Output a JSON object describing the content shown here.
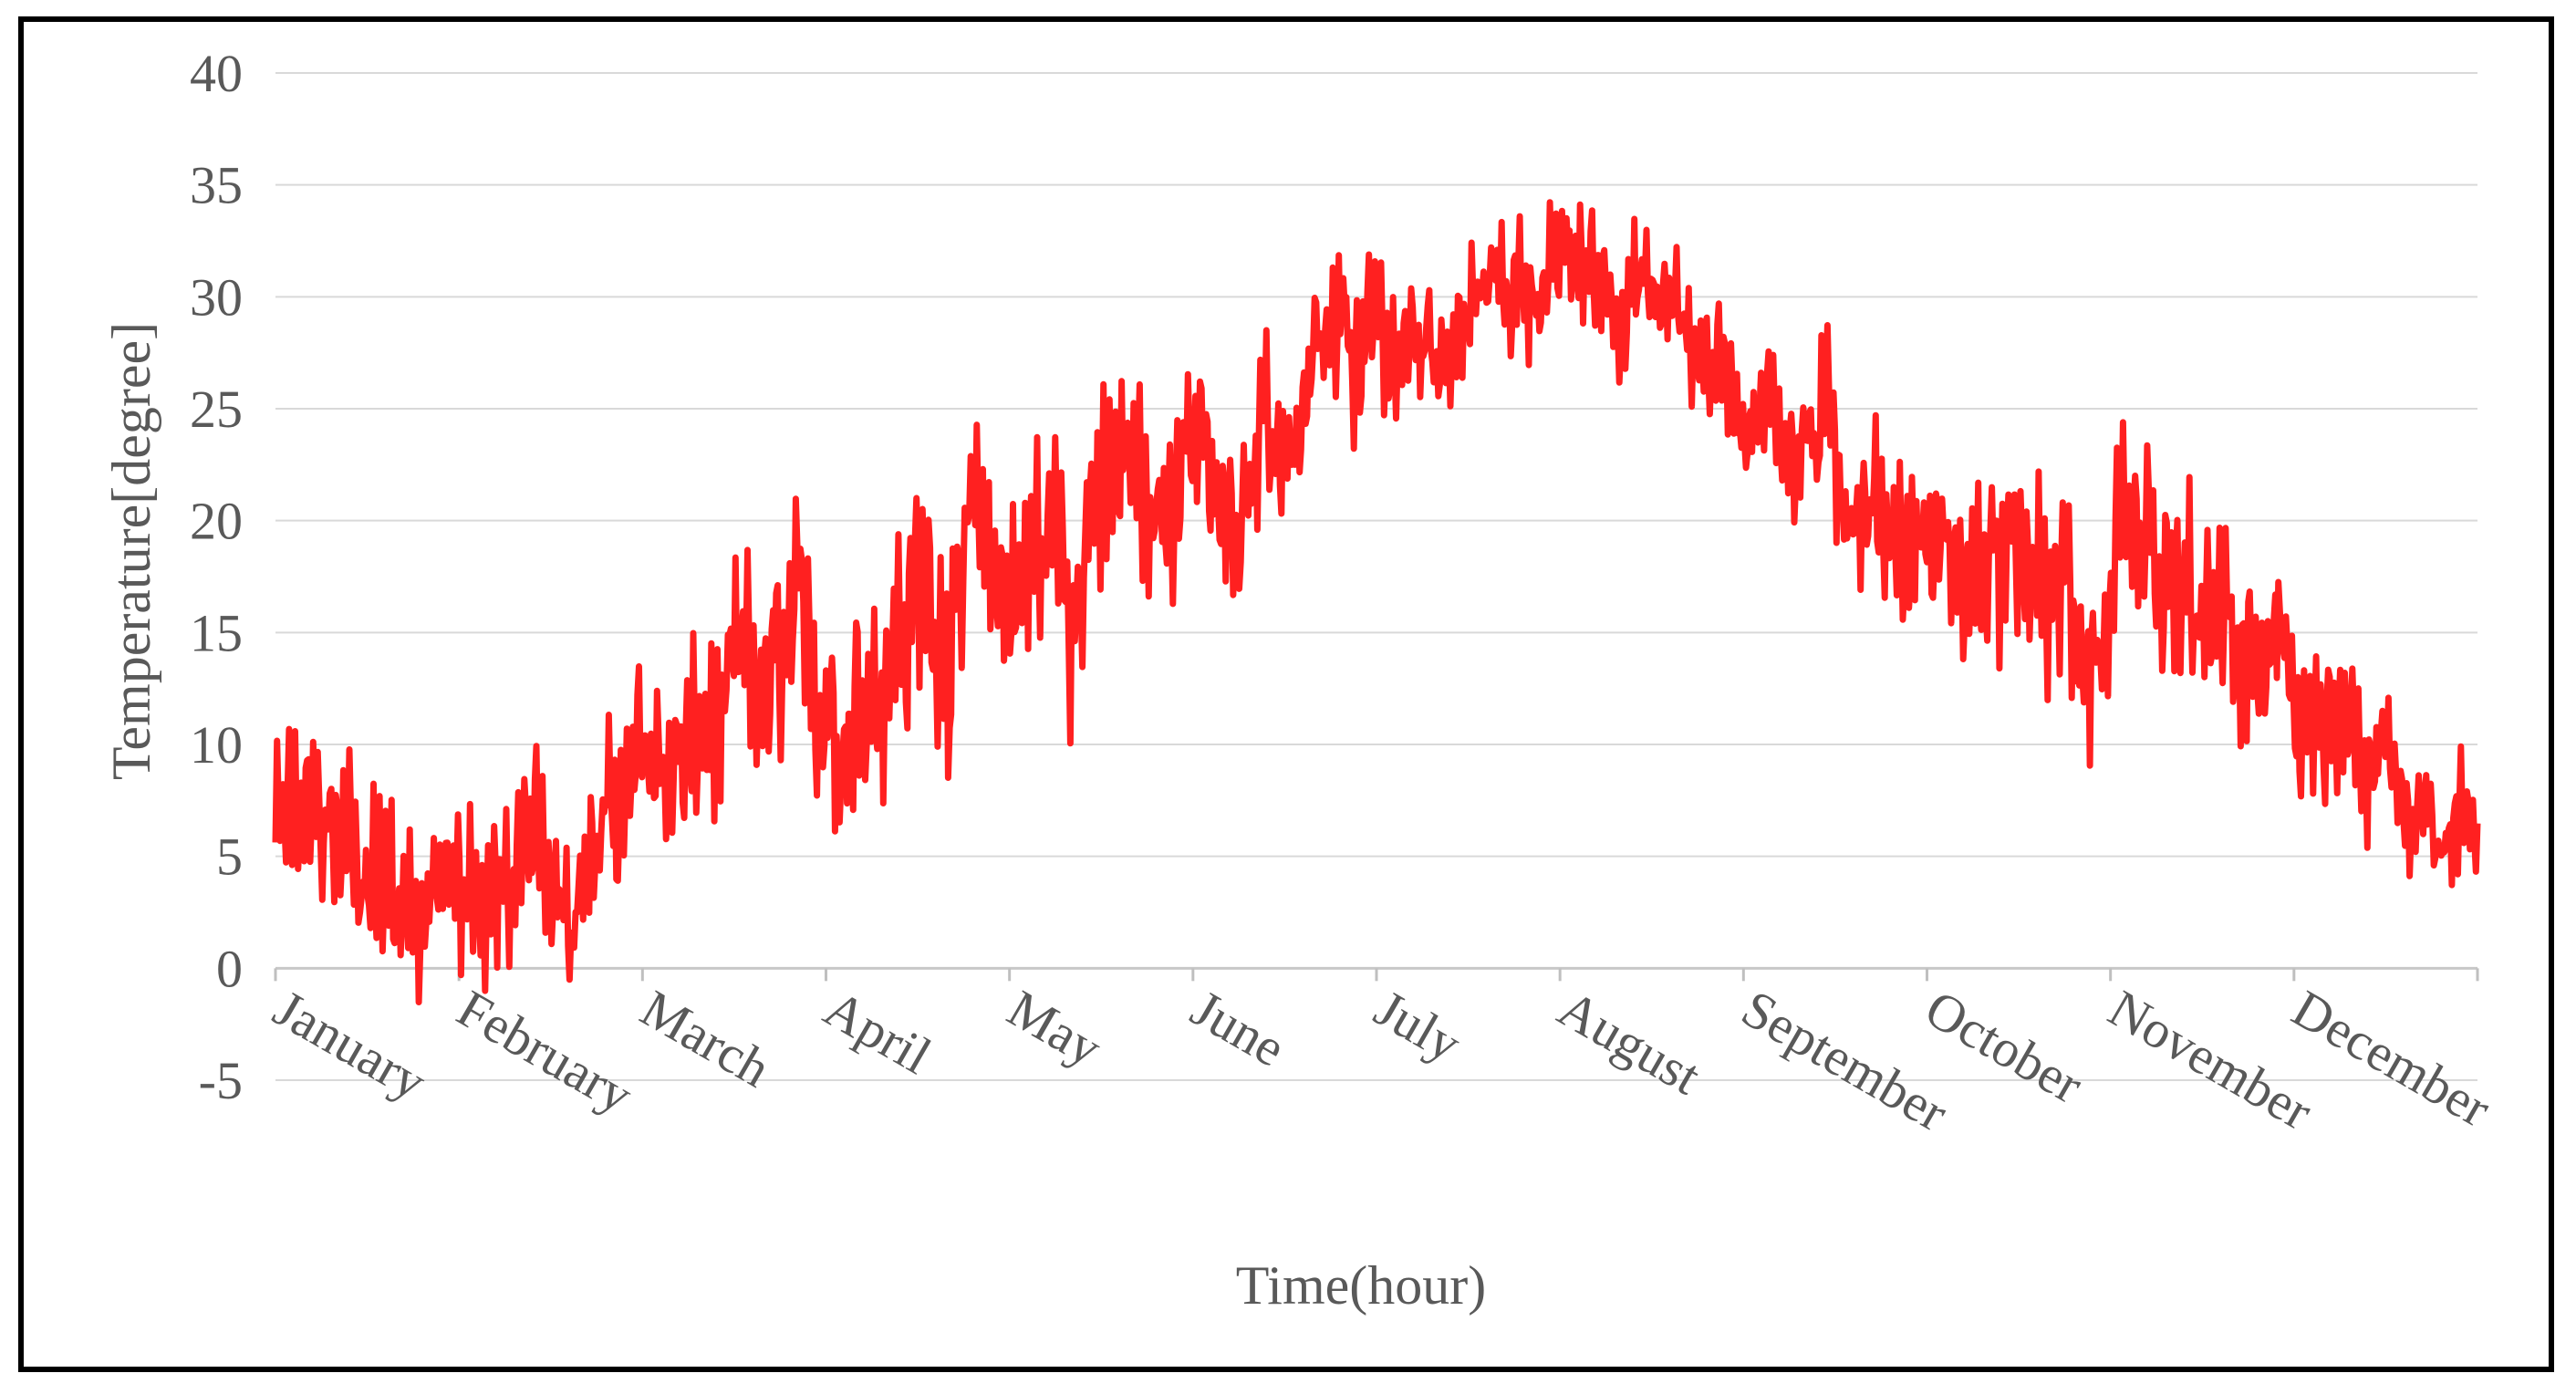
{
  "chart_data": {
    "type": "line",
    "title": "",
    "xlabel": "Time(hour)",
    "ylabel": "Temperature[degree]",
    "ylim": [
      -5,
      40
    ],
    "yticks": [
      40,
      35,
      30,
      25,
      20,
      15,
      10,
      5,
      0,
      -5
    ],
    "xlim": [
      0,
      8760
    ],
    "xtick_labels": [
      "January",
      "February",
      "March",
      "April",
      "May",
      "June",
      "July",
      "August",
      "September",
      "October",
      "November",
      "December"
    ],
    "grid": true,
    "legend": "none",
    "series": [
      {
        "color": "#ff2020",
        "x": [
          0,
          360,
          720,
          1080,
          1440,
          1800,
          2160,
          2520,
          2880,
          3240,
          3600,
          3960,
          4320,
          4680,
          5040,
          5400,
          5760,
          6120,
          6480,
          6840,
          7200,
          7560,
          7920,
          8280,
          8760
        ],
        "y": [
          6,
          5,
          3,
          4,
          8,
          10,
          12,
          17,
          17,
          20,
          22,
          23,
          26,
          29,
          31,
          31,
          27,
          24,
          20,
          17,
          15,
          14,
          13,
          8,
          7
        ],
        "spread": [
          4,
          5,
          4,
          4,
          4,
          5,
          5,
          6,
          6,
          5,
          5,
          4,
          4,
          3,
          3,
          3,
          3,
          4,
          4,
          4,
          5,
          5,
          4,
          4,
          3
        ]
      }
    ]
  }
}
